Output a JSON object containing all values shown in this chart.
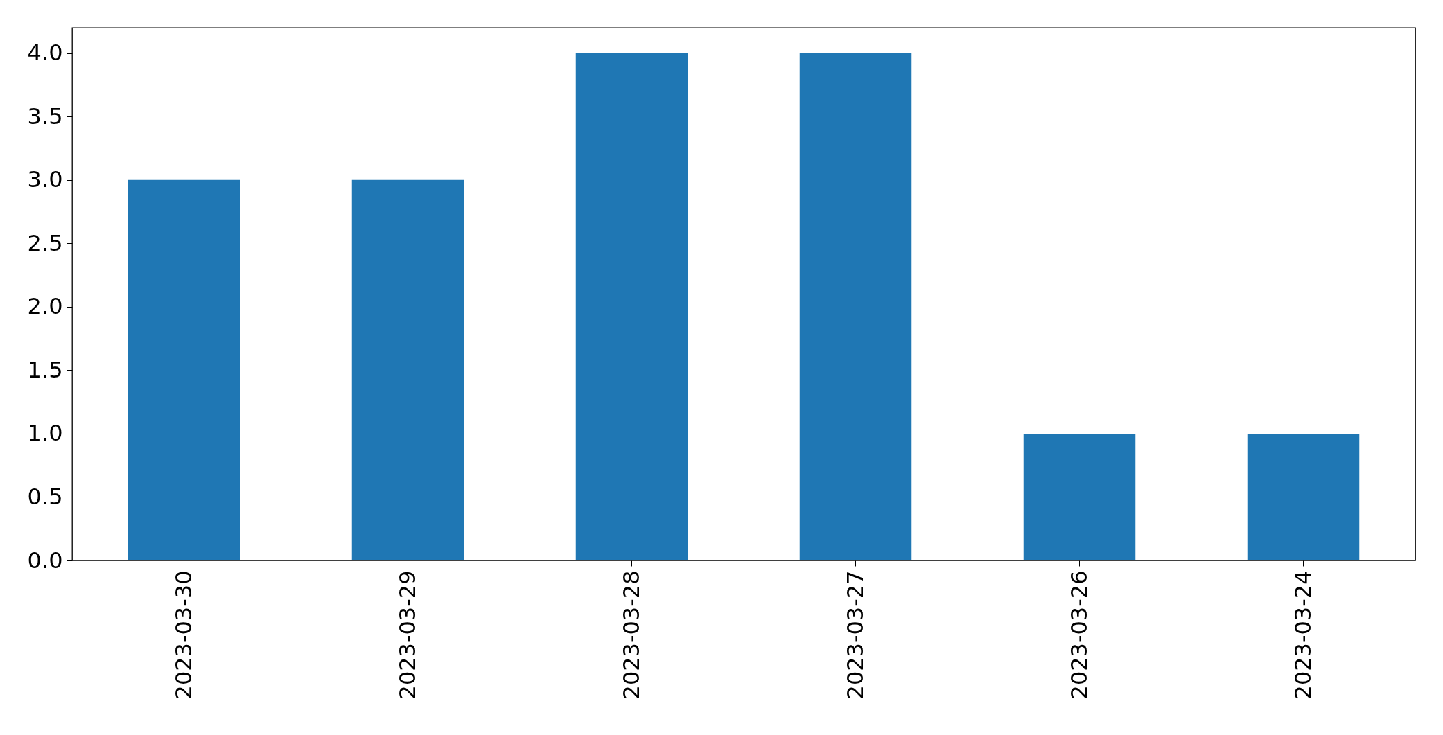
{
  "chart_data": {
    "type": "bar",
    "categories": [
      "2023-03-30",
      "2023-03-29",
      "2023-03-28",
      "2023-03-27",
      "2023-03-26",
      "2023-03-24"
    ],
    "values": [
      3,
      3,
      4,
      4,
      1,
      1
    ],
    "color": "#1f77b4",
    "ylim": [
      0,
      4.2
    ],
    "yticks": [
      {
        "value": 0,
        "label": "0.0"
      },
      0.5,
      {
        "value": 1,
        "label": "1.0"
      },
      1.5,
      {
        "value": 2,
        "label": "2.0"
      },
      2.5,
      {
        "value": 3,
        "label": "3.0"
      },
      3.5,
      {
        "value": 4,
        "label": "4.0"
      }
    ],
    "grid": false
  }
}
